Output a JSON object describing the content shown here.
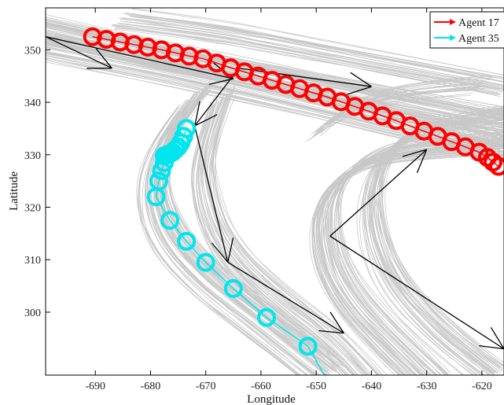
{
  "chart_data": {
    "type": "scatter",
    "title": "",
    "xlabel": "Longitude",
    "ylabel": "Latitude",
    "xlim": [
      -699,
      -616
    ],
    "ylim": [
      288,
      358
    ],
    "grid": false,
    "legend_position": "top-right",
    "x_ticks": [
      -690,
      -680,
      -670,
      -660,
      -650,
      -640,
      -630,
      -620
    ],
    "y_ticks": [
      300,
      310,
      320,
      330,
      340,
      350
    ],
    "x_tick_labels": [
      "-690",
      "-680",
      "-670",
      "-660",
      "-650",
      "-640",
      "-630",
      "-620"
    ],
    "y_tick_labels": [
      "300",
      "310",
      "320",
      "330",
      "340",
      "350"
    ],
    "background_tracks_color": "#c8c8c8",
    "series": [
      {
        "name": "Agent 17",
        "color": "#ff0000",
        "marker": "circle-open",
        "x": [
          -690.5,
          -688,
          -685.5,
          -683,
          -680.5,
          -678,
          -675.5,
          -673,
          -670.5,
          -668,
          -665.5,
          -663,
          -660.5,
          -658,
          -655.5,
          -653,
          -650.5,
          -648,
          -645.5,
          -643,
          -640.5,
          -638,
          -635.5,
          -633,
          -630.5,
          -628,
          -625.5,
          -623,
          -620.5,
          -619,
          -618,
          -617
        ],
        "y": [
          352.5,
          352,
          351.5,
          351,
          350.5,
          350,
          349.4,
          348.8,
          348.3,
          347.5,
          346.6,
          345.8,
          345,
          344.2,
          343.4,
          342.6,
          341.8,
          341,
          340.1,
          339.2,
          338.3,
          337.4,
          336.5,
          335.5,
          334.5,
          333.5,
          332.5,
          331.5,
          330.5,
          329.5,
          328.6,
          327.8
        ]
      },
      {
        "name": "Agent 35",
        "color": "#00e5ee",
        "marker": "circle-open",
        "x": [
          -673.5,
          -674,
          -674.5,
          -675,
          -675.5,
          -676,
          -676.5,
          -677,
          -677.5,
          -677.5,
          -678,
          -678.5,
          -679,
          -676.5,
          -673.5,
          -670,
          -665,
          -659,
          -651.5
        ],
        "y": [
          335,
          333.5,
          332.3,
          331.5,
          331,
          330.5,
          330.2,
          330,
          329.8,
          328.5,
          327,
          325,
          322,
          317.5,
          313.5,
          309.5,
          304.5,
          299,
          293.5
        ]
      }
    ],
    "arrow_annotations": [
      {
        "from": [
          -699,
          352.5
        ],
        "to": [
          -665,
          344.5
        ]
      },
      {
        "from": [
          -699,
          352.5
        ],
        "to": [
          -687,
          346.5
        ]
      },
      {
        "from": [
          -664,
          346.5
        ],
        "to": [
          -672,
          335.5
        ]
      },
      {
        "from": [
          -664,
          346.5
        ],
        "to": [
          -640,
          343
        ]
      },
      {
        "from": [
          -672,
          335.5
        ],
        "to": [
          -666,
          309.5
        ]
      },
      {
        "from": [
          -666,
          309.5
        ],
        "to": [
          -645,
          296
        ]
      },
      {
        "from": [
          -647.5,
          314.5
        ],
        "to": [
          -630,
          331
        ]
      },
      {
        "from": [
          -647.5,
          314.5
        ],
        "to": [
          -616,
          293
        ]
      }
    ]
  }
}
